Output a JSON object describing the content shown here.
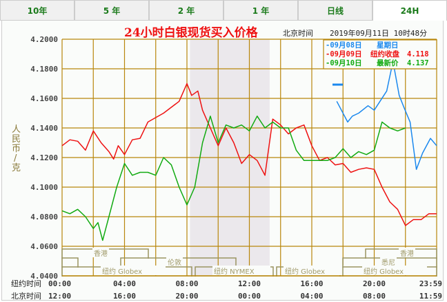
{
  "tabs": [
    {
      "label": "10年",
      "active": false
    },
    {
      "label": "5 年",
      "active": false
    },
    {
      "label": "2 年",
      "active": false
    },
    {
      "label": "1 年",
      "active": false
    },
    {
      "label": "日线",
      "active": false
    },
    {
      "label": "24H",
      "active": true
    }
  ],
  "header": {
    "title": "24小时白银现货买入价格",
    "tz_label": "北京时间",
    "datetime": "2019年09月11日 10时48分"
  },
  "legend": [
    {
      "date": "-09月08日",
      "text": "星期日",
      "value": "",
      "color": "#1a88ee"
    },
    {
      "date": "-09月09日",
      "text": "纽约收盘",
      "value": "4.118",
      "color": "#ee1111"
    },
    {
      "date": "-09月10日",
      "text": "最新价",
      "value": "4.137",
      "color": "#11aa11"
    }
  ],
  "y_axis_label": [
    "人",
    "民",
    "币",
    "/",
    "克"
  ],
  "x_rows": {
    "ny_label": "纽约时间",
    "bj_label": "北京时间"
  },
  "markets": [
    {
      "name": "香港",
      "row": 0
    },
    {
      "name": "伦敦",
      "row": 1
    },
    {
      "name": "纽约 Globex",
      "row": 2
    },
    {
      "name": "纽约 NYMEX",
      "row": 2
    },
    {
      "name": "纽约 Globex",
      "row": 2
    },
    {
      "name": "香港",
      "row": 0
    },
    {
      "name": "悉尼",
      "row": 1
    },
    {
      "name": "纽约 Globex",
      "row": 2
    }
  ],
  "colors": {
    "grid": "#b8860b",
    "nymex_shade": "#ebe8ec",
    "red_series": "#ee1111",
    "green_series": "#11aa11",
    "blue_series": "#1a88ee"
  },
  "chart_data": {
    "type": "line",
    "title": "24小时白银现货买入价格",
    "ylabel": "人民币/克",
    "xlabel": "",
    "ylim": [
      4.04,
      4.2
    ],
    "yticks": [
      "4.2000",
      "4.1800",
      "4.1600",
      "4.1400",
      "4.1200",
      "4.1000",
      "4.0800",
      "4.0600",
      "4.0400"
    ],
    "x_ny": [
      "00:00",
      "04:00",
      "08:00",
      "12:00",
      "16:00",
      "20:00",
      "23:59"
    ],
    "x_bj": [
      "12:00",
      "16:00",
      "20:00",
      "00:00",
      "04:00",
      "08:00",
      "11:59"
    ],
    "grid": true,
    "legend_position": "top-right",
    "x_hours": [
      0,
      1,
      2,
      3,
      4,
      5,
      6,
      7,
      8,
      9,
      10,
      11,
      12,
      13,
      14,
      15,
      16,
      17,
      18,
      19,
      20,
      21,
      22,
      23,
      24
    ],
    "series": [
      {
        "name": "09月08日 星期日",
        "color": "#1a88ee",
        "x": [
          17.6,
          18.3,
          18.6,
          19.0,
          19.6,
          20.0,
          20.8,
          21.2,
          21.6,
          21.9,
          22.3,
          22.7,
          23.1,
          23.6,
          24.0
        ],
        "values": [
          4.158,
          4.144,
          4.148,
          4.15,
          4.155,
          4.152,
          4.165,
          4.185,
          4.162,
          4.154,
          4.144,
          4.112,
          4.123,
          4.133,
          4.128
        ],
        "note": "short flat segment near 4.159 at hour ~17"
      },
      {
        "name": "09月09日 纽约收盘 4.118",
        "color": "#ee1111",
        "x": [
          0,
          0.5,
          1,
          1.5,
          2,
          2.5,
          3,
          3.3,
          3.6,
          4,
          4.5,
          5,
          5.5,
          6,
          6.5,
          7,
          7.5,
          8,
          8.3,
          8.7,
          9,
          9.5,
          10,
          10.5,
          11,
          11.5,
          12,
          12.5,
          13,
          13.5,
          14,
          14.5,
          15,
          15.5,
          16,
          16.5,
          17,
          17.5,
          18,
          18.5,
          19,
          19.5,
          20,
          20.5,
          21,
          21.5,
          22,
          22.5,
          23,
          23.5,
          24
        ],
        "values": [
          4.128,
          4.132,
          4.131,
          4.125,
          4.138,
          4.13,
          4.124,
          4.119,
          4.128,
          4.122,
          4.132,
          4.133,
          4.144,
          4.147,
          4.15,
          4.154,
          4.158,
          4.17,
          4.162,
          4.165,
          4.152,
          4.14,
          4.128,
          4.14,
          4.13,
          4.116,
          4.122,
          4.118,
          4.108,
          4.146,
          4.142,
          4.136,
          4.14,
          4.142,
          4.128,
          4.118,
          4.12,
          4.115,
          4.116,
          4.11,
          4.112,
          4.113,
          4.112,
          4.1,
          4.09,
          4.085,
          4.074,
          4.078,
          4.078,
          4.082,
          4.082
        ]
      },
      {
        "name": "09月10日 最新价 4.137",
        "color": "#11aa11",
        "x": [
          0,
          0.5,
          1,
          1.5,
          2,
          2.3,
          2.6,
          3,
          3.5,
          4,
          4.5,
          5,
          5.5,
          6,
          6.5,
          7,
          7.5,
          8,
          8.5,
          9,
          9.5,
          10,
          10.5,
          11,
          11.5,
          12,
          12.5,
          13,
          13.5,
          14,
          14.5,
          15,
          15.5,
          16,
          16.5,
          17,
          17.5,
          18,
          18.5,
          19,
          19.5,
          20,
          20.5,
          21,
          21.5,
          22
        ],
        "values": [
          4.084,
          4.082,
          4.085,
          4.08,
          4.072,
          4.076,
          4.064,
          4.08,
          4.1,
          4.116,
          4.108,
          4.11,
          4.11,
          4.108,
          4.12,
          4.115,
          4.1,
          4.088,
          4.1,
          4.13,
          4.148,
          4.13,
          4.142,
          4.14,
          4.142,
          4.138,
          4.148,
          4.14,
          4.144,
          4.14,
          4.14,
          4.125,
          4.118,
          4.118,
          4.118,
          4.118,
          4.12,
          4.126,
          4.12,
          4.124,
          4.122,
          4.125,
          4.144,
          4.14,
          4.138,
          4.14
        ]
      }
    ]
  }
}
